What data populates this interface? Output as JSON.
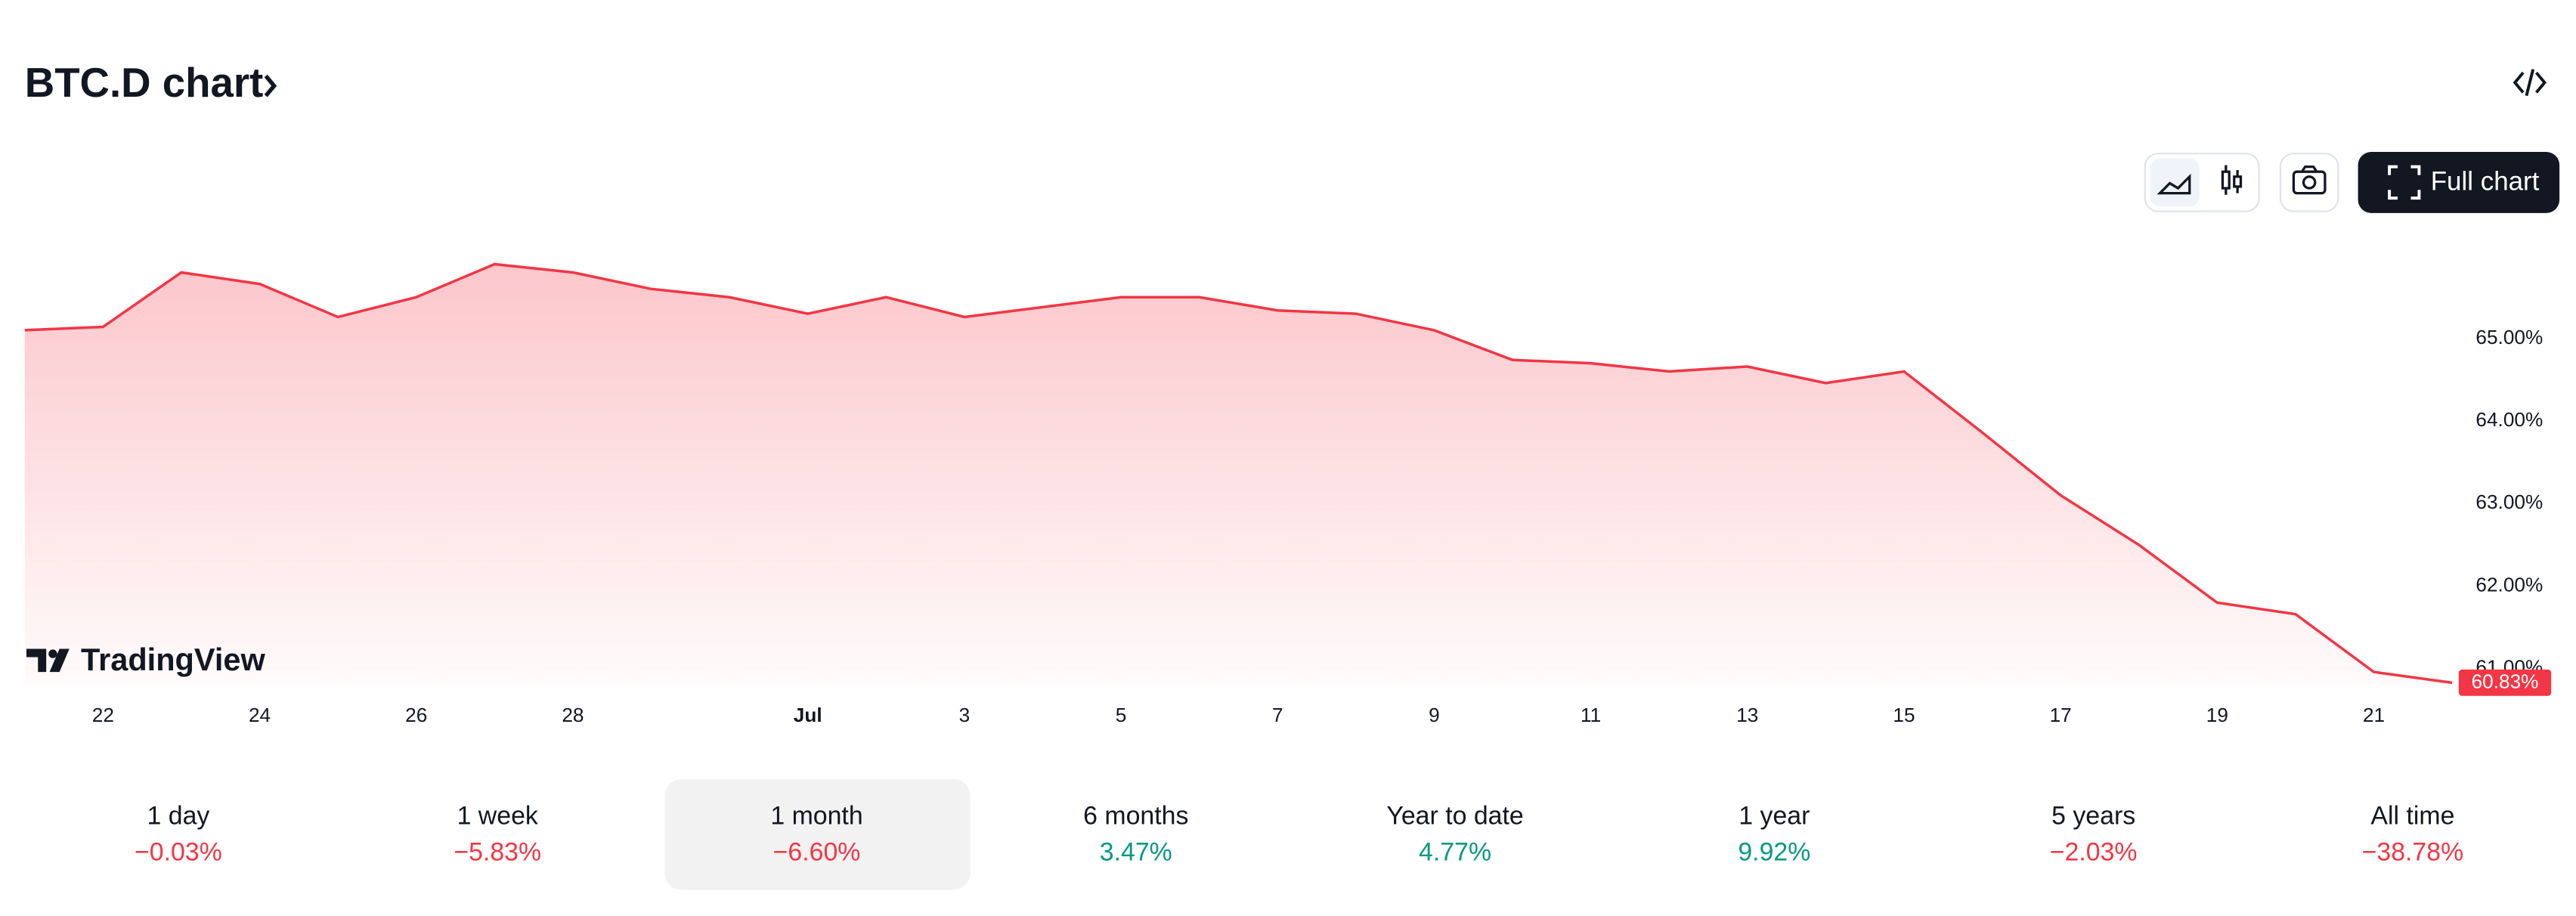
{
  "header": {
    "title": "BTC.D chart"
  },
  "toolbar": {
    "full_chart": "Full chart"
  },
  "brand": "TradingView",
  "chart_data": {
    "type": "line",
    "categories": [
      null,
      "22",
      null,
      "24",
      null,
      "26",
      null,
      "28",
      null,
      null,
      "Jul",
      null,
      "3",
      null,
      "5",
      null,
      "7",
      null,
      "9",
      null,
      "11",
      null,
      "13",
      null,
      "15",
      null,
      "17",
      null,
      "19",
      null,
      "21",
      null
    ],
    "series": [
      {
        "name": "BTC.D",
        "color": "#f23645",
        "values": [
          65.1,
          65.14,
          65.8,
          65.66,
          65.26,
          65.5,
          65.9,
          65.8,
          65.6,
          65.5,
          65.3,
          65.5,
          65.26,
          65.38,
          65.5,
          65.5,
          65.34,
          65.3,
          65.1,
          64.74,
          64.7,
          64.6,
          64.66,
          64.46,
          64.6,
          63.86,
          63.1,
          62.5,
          61.8,
          61.66,
          60.96,
          60.83
        ],
        "value_labels": [
          null,
          null,
          null,
          null,
          null,
          null,
          null,
          null,
          null,
          null,
          null,
          null,
          null,
          null,
          null,
          null,
          null,
          null,
          null,
          null,
          null,
          null,
          null,
          null,
          null,
          null,
          null,
          null,
          null,
          null,
          null,
          "60.83%"
        ]
      }
    ],
    "ylim": [
      60.8,
      66.1
    ],
    "yticks": [
      {
        "value": 61,
        "label": "61.00%"
      },
      {
        "value": 62,
        "label": "62.00%"
      },
      {
        "value": 63,
        "label": "63.00%"
      },
      {
        "value": 64,
        "label": "64.00%"
      },
      {
        "value": 65,
        "label": "65.00%"
      }
    ],
    "grid": false
  },
  "periods": [
    {
      "label": "1 day",
      "change": "−0.03%",
      "color": "#f23645"
    },
    {
      "label": "1 week",
      "change": "−5.83%",
      "color": "#f23645"
    },
    {
      "label": "1 month",
      "change": "−6.60%",
      "color": "#f23645",
      "selected": true
    },
    {
      "label": "6 months",
      "change": "3.47%",
      "color": "#089981"
    },
    {
      "label": "Year to date",
      "change": "4.77%",
      "color": "#089981"
    },
    {
      "label": "1 year",
      "change": "9.92%",
      "color": "#089981"
    },
    {
      "label": "5 years",
      "change": "−2.03%",
      "color": "#f23645"
    },
    {
      "label": "All time",
      "change": "−38.78%",
      "color": "#f23645"
    }
  ]
}
